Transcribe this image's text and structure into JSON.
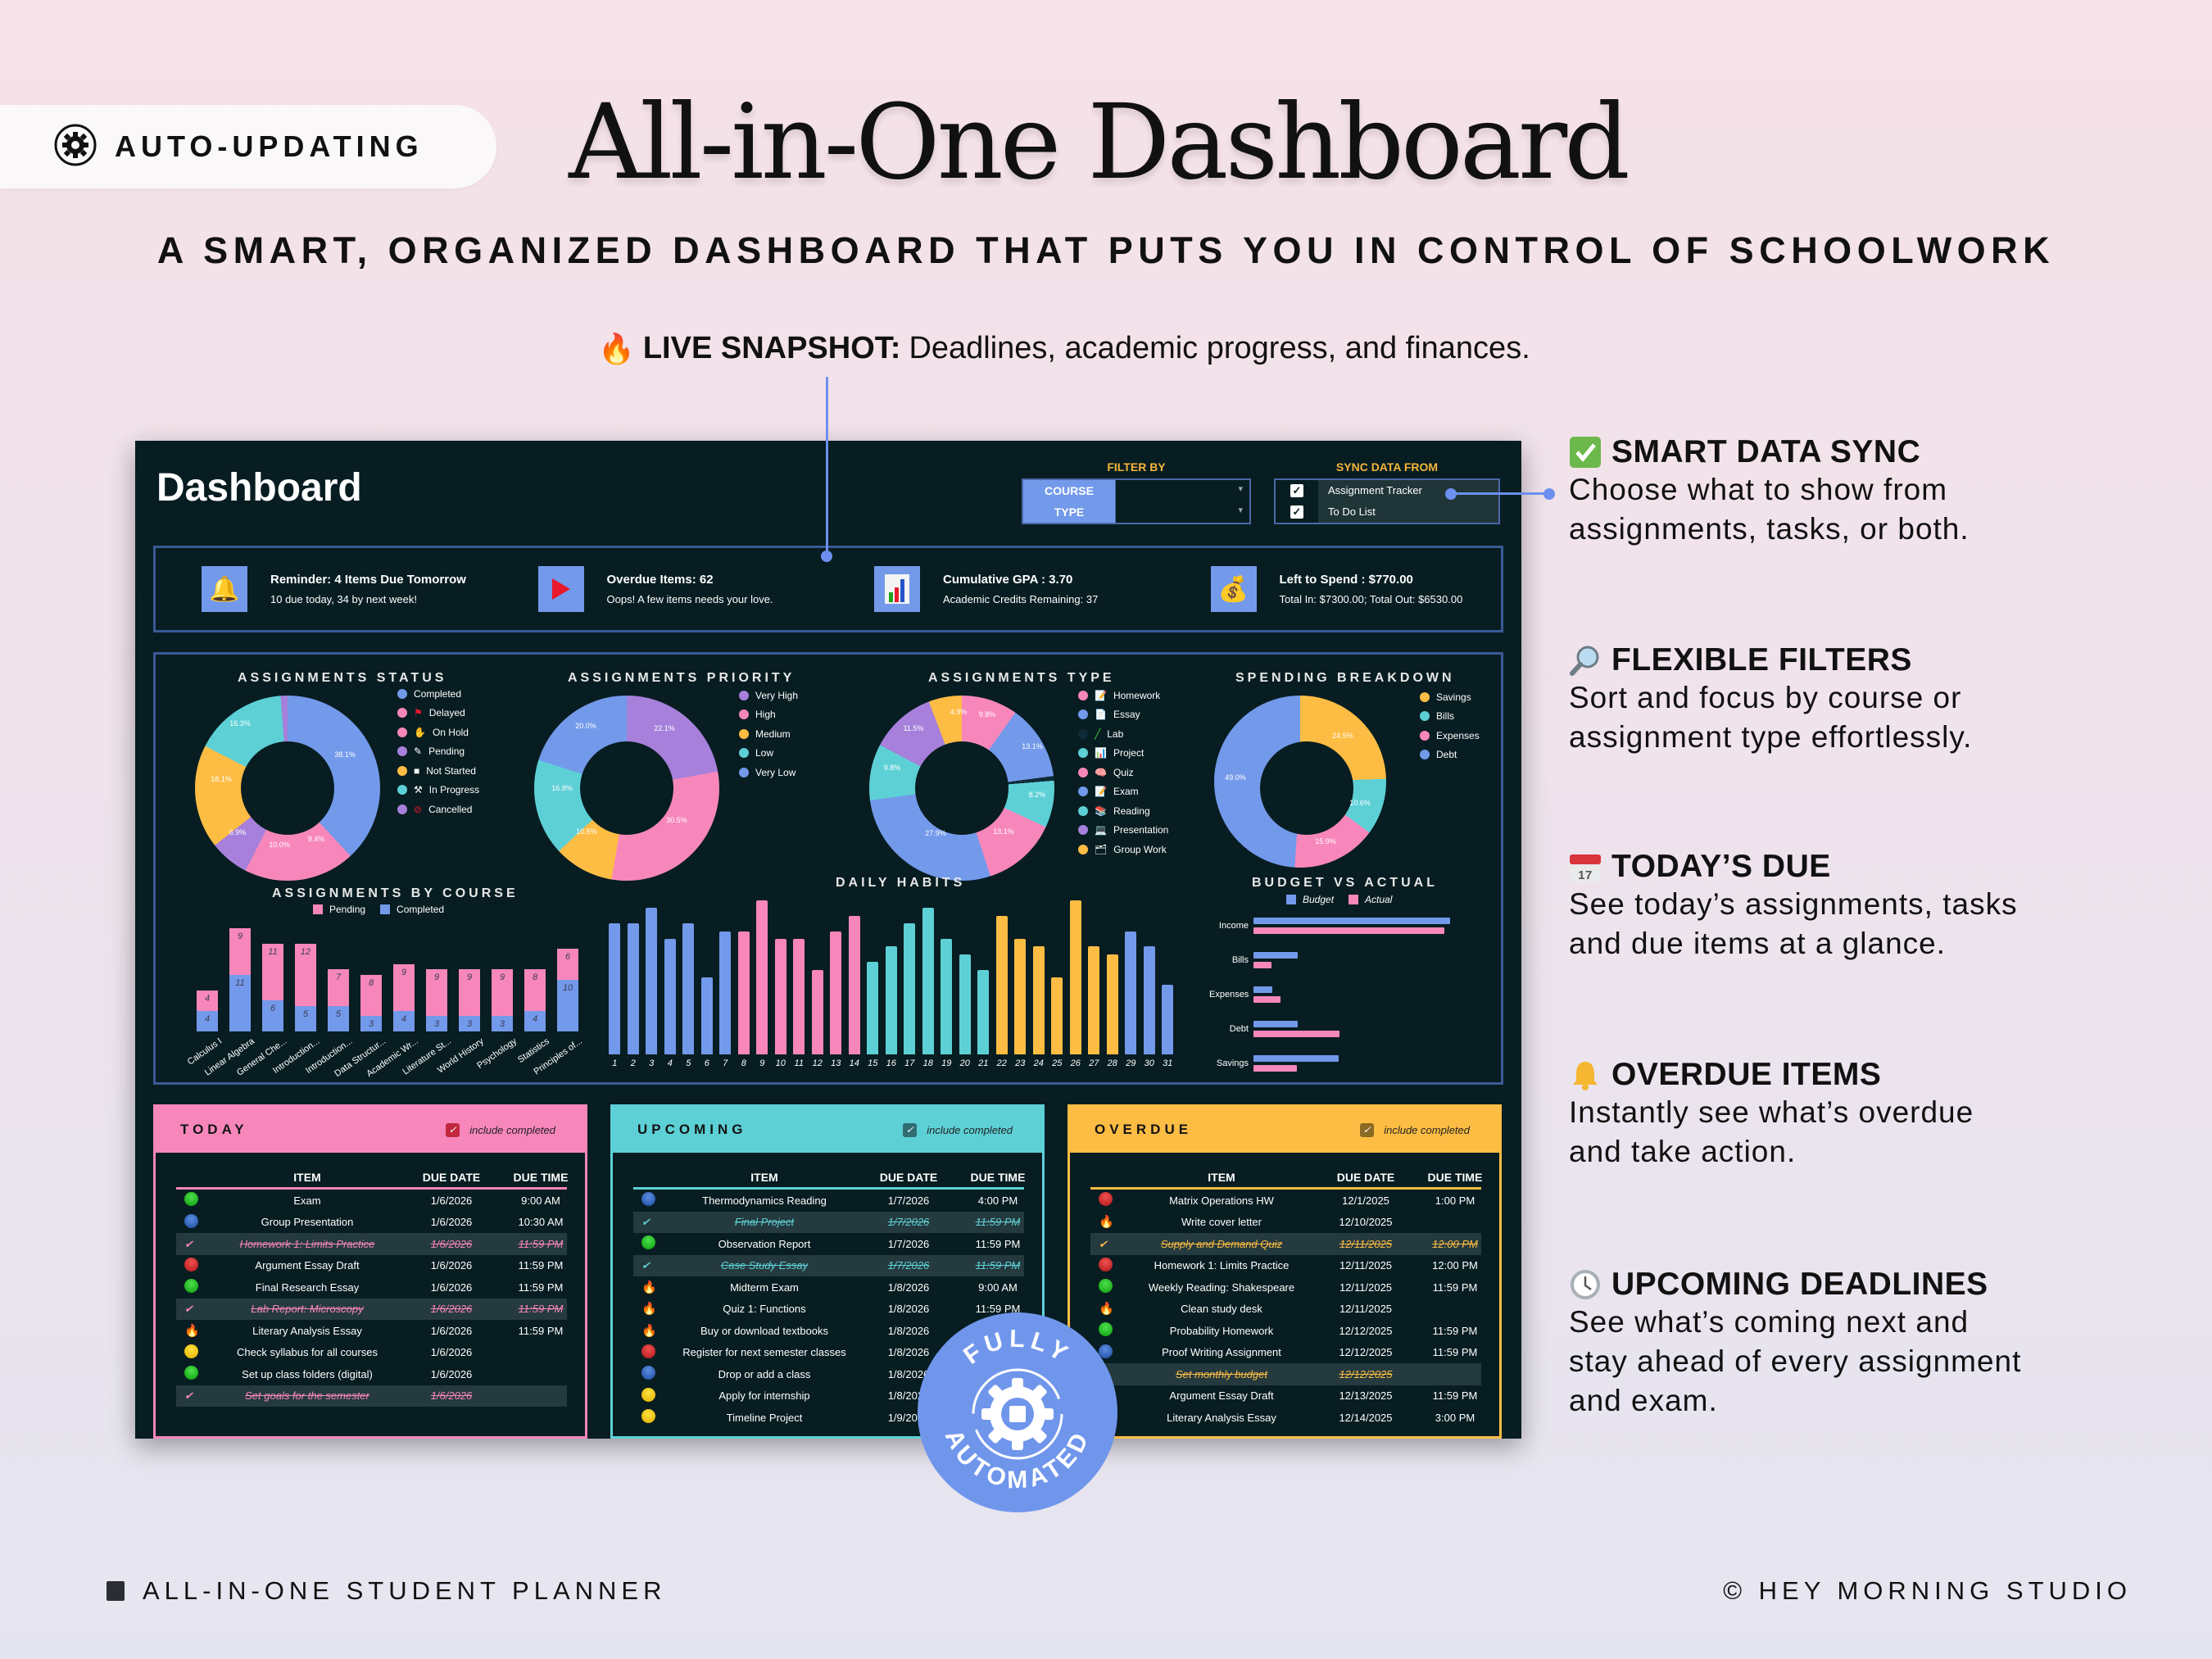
{
  "badge": {
    "icon": "gear-icon",
    "label": "AUTO-UPDATING"
  },
  "header": {
    "title": "All-in-One Dashboard",
    "subtitle": "A SMART, ORGANIZED DASHBOARD THAT PUTS YOU IN CONTROL OF SCHOOLWORK",
    "snapshot_icon": "fire-icon",
    "snapshot_label": "LIVE SNAPSHOT:",
    "snapshot_text": "Deadlines, academic progress, and finances."
  },
  "dashboard": {
    "title": "Dashboard",
    "filter": {
      "heading": "FILTER BY",
      "course_label": "COURSE",
      "course_value": "",
      "type_label": "TYPE",
      "type_value": ""
    },
    "sync": {
      "heading": "SYNC DATA FROM",
      "options": [
        {
          "label": "Assignment Tracker",
          "checked": true
        },
        {
          "label": "To Do List",
          "checked": true
        }
      ]
    },
    "kpis": [
      {
        "icon": "bell-icon",
        "title": "Reminder: 4 Items Due Tomorrow",
        "detail": "10 due today, 34 by next week!"
      },
      {
        "icon": "red-flag-icon",
        "title": "Overdue Items: 62",
        "detail": "Oops! A few items needs your love."
      },
      {
        "icon": "bar-chart-icon",
        "title": "Cumulative GPA : 3.70",
        "detail": "Academic Credits Remaining: 37"
      },
      {
        "icon": "money-bag-icon",
        "title": "Left to Spend : $770.00",
        "detail": "Total In: $7300.00; Total Out: $6530.00"
      }
    ]
  },
  "chart_data": [
    {
      "type": "pie",
      "title": "ASSIGNMENTS STATUS",
      "donut": true,
      "labels": [
        "Completed",
        "Delayed",
        "On Hold",
        "Pending",
        "Not Started",
        "In Progress",
        "Cancelled"
      ],
      "values": [
        38.1,
        9.4,
        10.0,
        6.9,
        18.1,
        16.3,
        1.2
      ],
      "colors": [
        "#7399ea",
        "#f787bb",
        "#f787bb",
        "#a680db",
        "#fdbd44",
        "#5dd0d6",
        "#a680db"
      ],
      "legend_icons": [
        "check-icon",
        "red-flag-icon",
        "hand-icon",
        "pencil-icon",
        "square-icon",
        "hammer-pick-icon",
        "prohibited-icon"
      ]
    },
    {
      "type": "pie",
      "title": "ASSIGNMENTS PRIORITY",
      "donut": true,
      "labels": [
        "Very High",
        "High",
        "Medium",
        "Low",
        "Very Low"
      ],
      "values": [
        22.1,
        30.5,
        10.5,
        16.8,
        20.0
      ],
      "colors": [
        "#a680db",
        "#f787bb",
        "#fdbd44",
        "#5dd0d6",
        "#7399ea"
      ]
    },
    {
      "type": "pie",
      "title": "ASSIGNMENTS TYPE",
      "donut": true,
      "labels": [
        "Homework",
        "Essay",
        "Lab",
        "Project",
        "Quiz",
        "Exam",
        "Reading",
        "Presentation",
        "Group Work"
      ],
      "values": [
        9.8,
        13.1,
        0.8,
        8.2,
        13.1,
        27.9,
        9.8,
        11.5,
        4.9
      ],
      "colors": [
        "#f787bb",
        "#7399ea",
        "#0e2c38",
        "#5dd0d6",
        "#f787bb",
        "#7399ea",
        "#5dd0d6",
        "#a680db",
        "#fdbd44"
      ],
      "legend_icons": [
        "memo-icon",
        "page-icon",
        "pen-icon",
        "chart-icon",
        "brain-icon",
        "memo-icon",
        "books-icon",
        "laptop-icon",
        "group-icon"
      ]
    },
    {
      "type": "pie",
      "title": "SPENDING BREAKDOWN",
      "donut": true,
      "labels": [
        "Savings",
        "Bills",
        "Expenses",
        "Debt"
      ],
      "values": [
        24.5,
        10.6,
        15.9,
        49.0
      ],
      "colors": [
        "#fdbd44",
        "#5dd0d6",
        "#f787bb",
        "#7399ea"
      ]
    },
    {
      "type": "bar",
      "stacked": true,
      "title": "ASSIGNMENTS BY COURSE",
      "categories": [
        "Calculus I",
        "Linear Algebra",
        "General Che...",
        "Introduction...",
        "Introduction...",
        "Data Structur...",
        "Academic Wr...",
        "Literature St...",
        "World History",
        "Psychology",
        "Statistics",
        "Principles of..."
      ],
      "series": [
        {
          "name": "Pending",
          "color": "#f787bb",
          "values": [
            4,
            9,
            11,
            12,
            7,
            8,
            9,
            9,
            9,
            9,
            8,
            6
          ]
        },
        {
          "name": "Completed",
          "color": "#7399ea",
          "values": [
            4,
            11,
            6,
            5,
            5,
            3,
            4,
            3,
            3,
            3,
            4,
            10
          ]
        }
      ],
      "legend_position": "top"
    },
    {
      "type": "bar",
      "title": "DAILY HABITS",
      "categories": [
        "1",
        "2",
        "3",
        "4",
        "5",
        "6",
        "7",
        "8",
        "9",
        "10",
        "11",
        "12",
        "13",
        "14",
        "15",
        "16",
        "17",
        "18",
        "19",
        "20",
        "21",
        "22",
        "23",
        "24",
        "25",
        "26",
        "27",
        "28",
        "29",
        "30",
        "31"
      ],
      "values": [
        17,
        17,
        19,
        15,
        17,
        10,
        16,
        16,
        20,
        15,
        15,
        11,
        16,
        18,
        12,
        14,
        17,
        19,
        15,
        13,
        11,
        18,
        15,
        14,
        10,
        20,
        14,
        13,
        16,
        14,
        9
      ],
      "colors": [
        "#7399ea",
        "#7399ea",
        "#7399ea",
        "#7399ea",
        "#7399ea",
        "#7399ea",
        "#7399ea",
        "#f787bb",
        "#f787bb",
        "#f787bb",
        "#f787bb",
        "#f787bb",
        "#f787bb",
        "#f787bb",
        "#5dd0d6",
        "#5dd0d6",
        "#5dd0d6",
        "#5dd0d6",
        "#5dd0d6",
        "#5dd0d6",
        "#5dd0d6",
        "#fdbd44",
        "#fdbd44",
        "#fdbd44",
        "#fdbd44",
        "#fdbd44",
        "#fdbd44",
        "#fdbd44",
        "#7399ea",
        "#7399ea",
        "#7399ea"
      ],
      "grid": false
    },
    {
      "type": "bar",
      "orientation": "horizontal",
      "title": "BUDGET VS ACTUAL",
      "categories": [
        "Income",
        "Bills",
        "Expenses",
        "Debt",
        "Savings"
      ],
      "series": [
        {
          "name": "Budget",
          "color": "#7399ea",
          "values": [
            7300,
            1650,
            700,
            1650,
            3150
          ]
        },
        {
          "name": "Actual",
          "color": "#f787bb",
          "values": [
            7300,
            700,
            1050,
            3300,
            1650
          ]
        }
      ],
      "legend_position": "top"
    }
  ],
  "tables": {
    "columns": [
      "ITEM",
      "DUE DATE",
      "DUE TIME"
    ],
    "include_completed_label": "include completed",
    "today": {
      "title": "TODAY",
      "color": "#f787bb",
      "include_completed": true,
      "rows": [
        {
          "status": "green",
          "item": "Exam",
          "date": "1/6/2026",
          "time": "9:00 AM",
          "done": false
        },
        {
          "status": "blue",
          "item": "Group Presentation",
          "date": "1/6/2026",
          "time": "10:30 AM",
          "done": false
        },
        {
          "status": "check",
          "item": "Homework 1: Limits Practice",
          "date": "1/6/2026",
          "time": "11:59 PM",
          "done": true
        },
        {
          "status": "red",
          "item": "Argument Essay Draft",
          "date": "1/6/2026",
          "time": "11:59 PM",
          "done": false
        },
        {
          "status": "green",
          "item": "Final Research Essay",
          "date": "1/6/2026",
          "time": "11:59 PM",
          "done": false
        },
        {
          "status": "check",
          "item": "Lab Report: Microscopy",
          "date": "1/6/2026",
          "time": "11:59 PM",
          "done": true
        },
        {
          "status": "fire",
          "item": "Literary Analysis Essay",
          "date": "1/6/2026",
          "time": "11:59 PM",
          "done": false
        },
        {
          "status": "yellow",
          "item": "Check syllabus for all courses",
          "date": "1/6/2026",
          "time": "",
          "done": false
        },
        {
          "status": "green",
          "item": "Set up class folders (digital)",
          "date": "1/6/2026",
          "time": "",
          "done": false
        },
        {
          "status": "check",
          "item": "Set goals for the semester",
          "date": "1/6/2026",
          "time": "",
          "done": true
        }
      ]
    },
    "upcoming": {
      "title": "UPCOMING",
      "color": "#5dd0d6",
      "include_completed": true,
      "rows": [
        {
          "status": "blue",
          "item": "Thermodynamics Reading",
          "date": "1/7/2026",
          "time": "4:00 PM",
          "done": false
        },
        {
          "status": "check",
          "item": "Final Project",
          "date": "1/7/2026",
          "time": "11:59 PM",
          "done": true
        },
        {
          "status": "green",
          "item": "Observation Report",
          "date": "1/7/2026",
          "time": "11:59 PM",
          "done": false
        },
        {
          "status": "check",
          "item": "Case Study Essay",
          "date": "1/7/2026",
          "time": "11:59 PM",
          "done": true
        },
        {
          "status": "fire",
          "item": "Midterm Exam",
          "date": "1/8/2026",
          "time": "9:00 AM",
          "done": false
        },
        {
          "status": "fire",
          "item": "Quiz 1: Functions",
          "date": "1/8/2026",
          "time": "11:59 PM",
          "done": false
        },
        {
          "status": "fire",
          "item": "Buy or download textbooks",
          "date": "1/8/2026",
          "time": "",
          "done": false
        },
        {
          "status": "red",
          "item": "Register for next semester classes",
          "date": "1/8/2026",
          "time": "",
          "done": false
        },
        {
          "status": "blue",
          "item": "Drop or add a class",
          "date": "1/8/2026",
          "time": "",
          "done": false
        },
        {
          "status": "yellow",
          "item": "Apply for internship",
          "date": "1/8/2026",
          "time": "",
          "done": false
        },
        {
          "status": "yellow",
          "item": "Timeline Project",
          "date": "1/9/2026",
          "time": "",
          "done": false
        }
      ]
    },
    "overdue": {
      "title": "OVERDUE",
      "color": "#fdbd44",
      "include_completed": true,
      "rows": [
        {
          "status": "red",
          "item": "Matrix Operations HW",
          "date": "12/1/2025",
          "time": "1:00 PM",
          "done": false
        },
        {
          "status": "fire",
          "item": "Write cover letter",
          "date": "12/10/2025",
          "time": "",
          "done": false
        },
        {
          "status": "check",
          "item": "Supply and Demand Quiz",
          "date": "12/11/2025",
          "time": "12:00 PM",
          "done": true
        },
        {
          "status": "red",
          "item": "Homework 1: Limits Practice",
          "date": "12/11/2025",
          "time": "12:00 PM",
          "done": false
        },
        {
          "status": "green",
          "item": "Weekly Reading: Shakespeare",
          "date": "12/11/2025",
          "time": "11:59 PM",
          "done": false
        },
        {
          "status": "fire",
          "item": "Clean study desk",
          "date": "12/11/2025",
          "time": "",
          "done": false
        },
        {
          "status": "green",
          "item": "Probability Homework",
          "date": "12/12/2025",
          "time": "11:59 PM",
          "done": false
        },
        {
          "status": "blue",
          "item": "Proof Writing Assignment",
          "date": "12/12/2025",
          "time": "11:59 PM",
          "done": false
        },
        {
          "status": "check",
          "item": "Set monthly budget",
          "date": "12/12/2025",
          "time": "",
          "done": true
        },
        {
          "status": "none",
          "item": "Argument Essay Draft",
          "date": "12/13/2025",
          "time": "11:59 PM",
          "done": false
        },
        {
          "status": "none",
          "item": "Literary Analysis Essay",
          "date": "12/14/2025",
          "time": "3:00 PM",
          "done": false
        }
      ]
    }
  },
  "seal": {
    "top_text": "FULLY",
    "bottom_text": "AUTOMATED",
    "icon": "gear-chip-cycle-icon",
    "color": "#7096ec"
  },
  "callouts": [
    {
      "icon": "check-box-icon",
      "title": "SMART DATA SYNC",
      "lines": [
        "Choose what to show from",
        "assignments, tasks, or both."
      ]
    },
    {
      "icon": "magnifier-icon",
      "title": "FLEXIBLE FILTERS",
      "lines": [
        "Sort and focus by course or",
        "assignment type effortlessly."
      ]
    },
    {
      "icon": "calendar-icon",
      "title": "TODAY’S DUE",
      "lines": [
        "See today’s assignments, tasks",
        "and due items at a glance."
      ]
    },
    {
      "icon": "bell-icon",
      "title": "OVERDUE ITEMS",
      "lines": [
        "Instantly see what’s overdue",
        "and take action."
      ]
    },
    {
      "icon": "clock-icon",
      "title": "UPCOMING DEADLINES",
      "lines": [
        "See what’s coming next and",
        "stay ahead of every assignment",
        "and exam."
      ]
    }
  ],
  "footer": {
    "left": "ALL-IN-ONE STUDENT PLANNER",
    "right": "© HEY MORNING STUDIO"
  }
}
